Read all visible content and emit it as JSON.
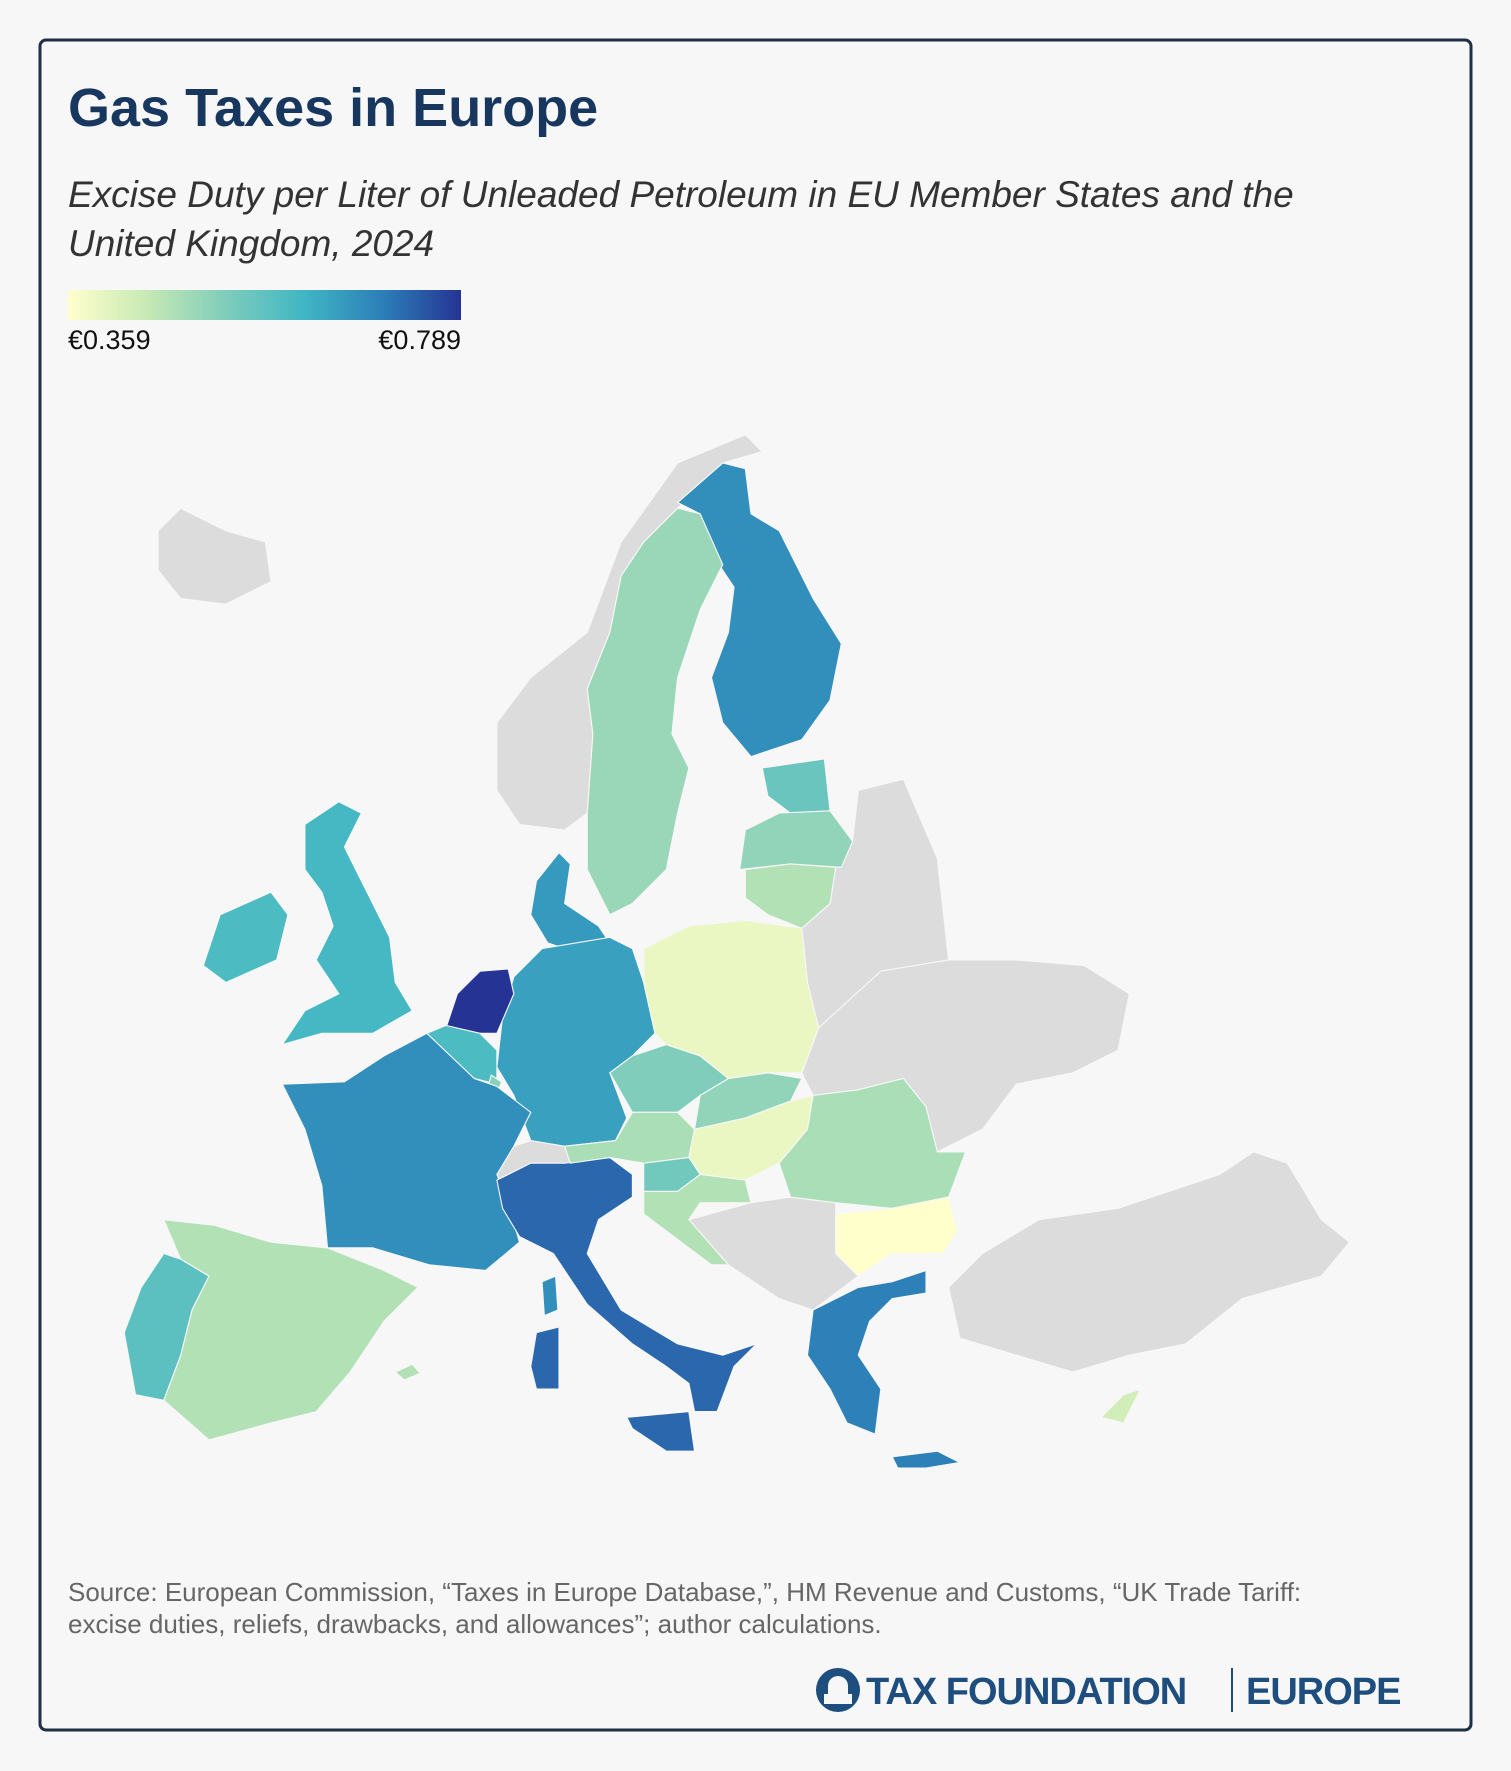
{
  "title": "Gas Taxes in Europe",
  "subtitle": [
    "Excise Duty per Liter of Unleaded Petroleum in EU Member States and the",
    "United Kingdom, 2024"
  ],
  "legend": {
    "min": 0.359,
    "max": 0.789,
    "min_label": "€0.359",
    "max_label": "€0.789"
  },
  "regions": {
    "values": [
      0.68,
      0.5,
      0.56,
      0.51,
      0.47,
      0.66,
      0.65,
      0.789,
      0.6,
      0.52,
      0.68,
      0.61,
      0.6,
      0.47,
      0.58,
      0.73,
      0.53,
      0.51,
      0.39,
      0.48,
      0.39,
      0.55,
      0.47,
      0.48,
      0.359,
      0.7,
      0.43
    ]
  },
  "source": [
    "Source: European Commission, “Taxes in Europe Database,”, HM Revenue and Customs, “UK Trade Tariff:",
    "excise duties, reliefs, drawbacks, and allowances”; author calculations."
  ],
  "logo": {
    "name": "TAX FOUNDATION",
    "division": "EUROPE"
  }
}
